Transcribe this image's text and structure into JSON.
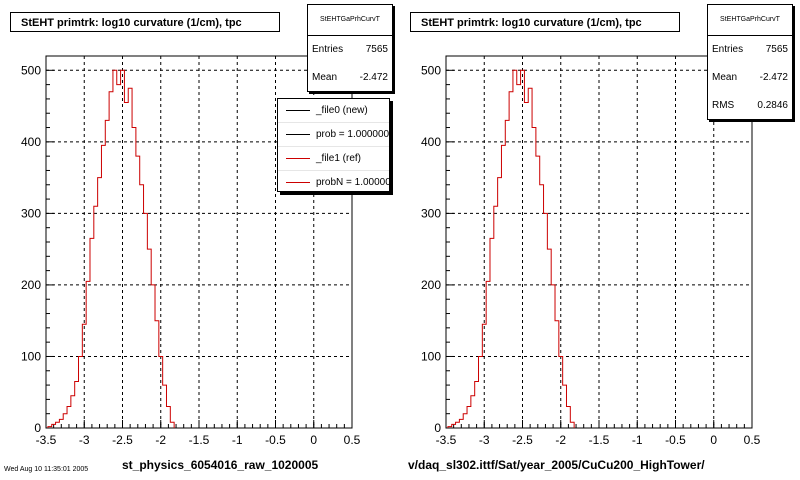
{
  "left": {
    "title": "StEHT primtrk: log10 curvature (1/cm), tpc",
    "stats": {
      "name": "StEHTGaPrhCurvT",
      "rows": [
        {
          "label": "Entries",
          "value": "7565"
        },
        {
          "label": "Mean",
          "value": "-2.472"
        }
      ]
    },
    "legend": [
      {
        "label": "_file0 (new)",
        "color": "#000000"
      },
      {
        "label": "prob = 1.000000",
        "color": "#000000"
      },
      {
        "label": "_file1 (ref)",
        "color": "#cc0000"
      },
      {
        "label": "probN = 1.000000",
        "color": "#cc0000"
      }
    ],
    "footer": "st_physics_6054016_raw_1020005"
  },
  "right": {
    "title": "StEHT primtrk: log10 curvature (1/cm), tpc",
    "stats": {
      "name": "StEHTGaPrhCurvT",
      "rows": [
        {
          "label": "Entries",
          "value": "7565"
        },
        {
          "label": "Mean",
          "value": "-2.472"
        },
        {
          "label": "RMS",
          "value": "0.2846"
        }
      ]
    },
    "footer": "v/daq_sl302.ittf/Sat/year_2005/CuCu200_HighTower/"
  },
  "corner_note": "Wed Aug 10 11:35:01 2005",
  "chart_data": {
    "type": "bar",
    "histogram": true,
    "series_color": "#cc0000",
    "xlim": [
      -3.5,
      0.5
    ],
    "ylim": [
      0,
      520
    ],
    "grid": true,
    "xticks": [
      "-3.5",
      "-3",
      "-2.5",
      "-2",
      "-1.5",
      "-1",
      "-0.5",
      "0",
      "0.5"
    ],
    "yticks": [
      "0",
      "100",
      "200",
      "300",
      "400",
      "500"
    ],
    "bin_width": 0.05,
    "x": [
      -3.45,
      -3.4,
      -3.35,
      -3.3,
      -3.25,
      -3.2,
      -3.15,
      -3.1,
      -3.05,
      -3.0,
      -2.95,
      -2.9,
      -2.85,
      -2.8,
      -2.75,
      -2.7,
      -2.65,
      -2.6,
      -2.55,
      -2.5,
      -2.45,
      -2.4,
      -2.35,
      -2.3,
      -2.25,
      -2.2,
      -2.15,
      -2.1,
      -2.05,
      -2.0,
      -1.95,
      -1.9,
      -1.85
    ],
    "values": [
      2,
      5,
      8,
      12,
      20,
      30,
      45,
      65,
      100,
      145,
      205,
      265,
      310,
      350,
      395,
      430,
      470,
      500,
      480,
      500,
      455,
      475,
      420,
      380,
      340,
      300,
      250,
      200,
      150,
      100,
      60,
      30,
      8
    ]
  }
}
